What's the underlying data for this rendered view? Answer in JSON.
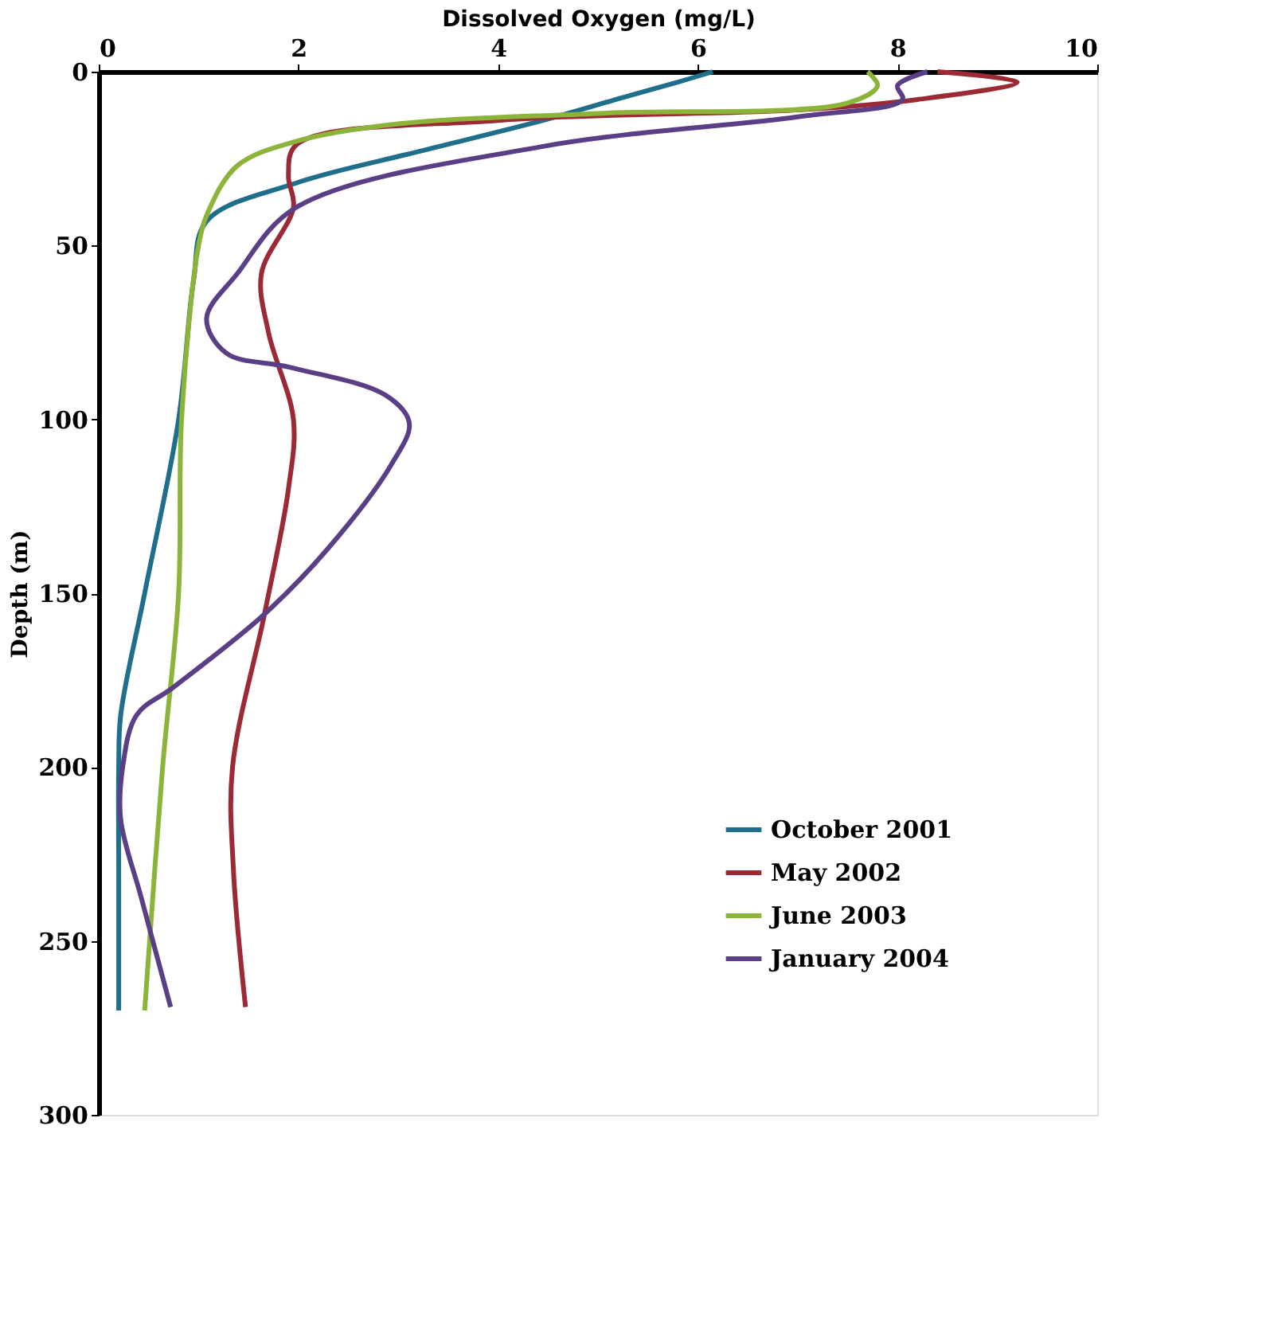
{
  "chart_data": {
    "type": "line",
    "xlabel": "Dissolved Oxygen (mg/L)",
    "ylabel": "Depth (m)",
    "xlim": [
      0,
      10
    ],
    "xticks": [
      0,
      2,
      4,
      6,
      8,
      10
    ],
    "ylim": [
      300,
      0
    ],
    "yticks": [
      0,
      50,
      100,
      150,
      200,
      250,
      300
    ],
    "grid": false,
    "legend": "bottom right",
    "series": [
      {
        "name": "October 2001",
        "color": "#1f6e8c",
        "x": [
          6.15,
          5.8,
          5.3,
          4.45,
          3.2,
          1.98,
          1.08,
          0.95,
          0.8,
          0.46,
          0.22,
          0.2,
          0.2,
          0.2
        ],
        "values": [
          0,
          3,
          7,
          14,
          23,
          32,
          43,
          60,
          100,
          150,
          185,
          200,
          230,
          270
        ]
      },
      {
        "name": "May 2002",
        "color": "#9b2a35",
        "x": [
          8.4,
          9.2,
          8.2,
          7.0,
          4.0,
          1.98,
          1.9,
          1.95,
          1.63,
          1.7,
          1.95,
          1.9,
          1.66,
          1.34,
          1.35,
          1.47
        ],
        "values": [
          0,
          3,
          8,
          11,
          14,
          21,
          30,
          39,
          58,
          75,
          100,
          120,
          156,
          200,
          230,
          269
        ]
      },
      {
        "name": "June 2003",
        "color": "#8db43a",
        "x": [
          7.7,
          7.8,
          7.5,
          5.0,
          3.0,
          1.98,
          1.39,
          1.1,
          1.0,
          0.83,
          0.8,
          0.64,
          0.46
        ],
        "values": [
          0,
          4,
          9,
          12,
          15,
          20,
          27,
          40,
          50,
          100,
          150,
          200,
          270
        ]
      },
      {
        "name": "January 2004",
        "color": "#5b3f86",
        "x": [
          8.3,
          8.0,
          8.05,
          7.0,
          4.45,
          1.98,
          1.39,
          1.08,
          1.28,
          1.91,
          2.87,
          3.11,
          2.93,
          2.3,
          1.66,
          0.75,
          0.38,
          0.24,
          0.22,
          0.43,
          0.72
        ],
        "values": [
          0,
          4,
          8,
          13,
          21.5,
          39,
          58,
          71,
          81,
          85,
          93,
          101,
          113,
          137,
          156,
          177,
          185,
          200,
          215,
          238,
          269
        ]
      }
    ]
  }
}
